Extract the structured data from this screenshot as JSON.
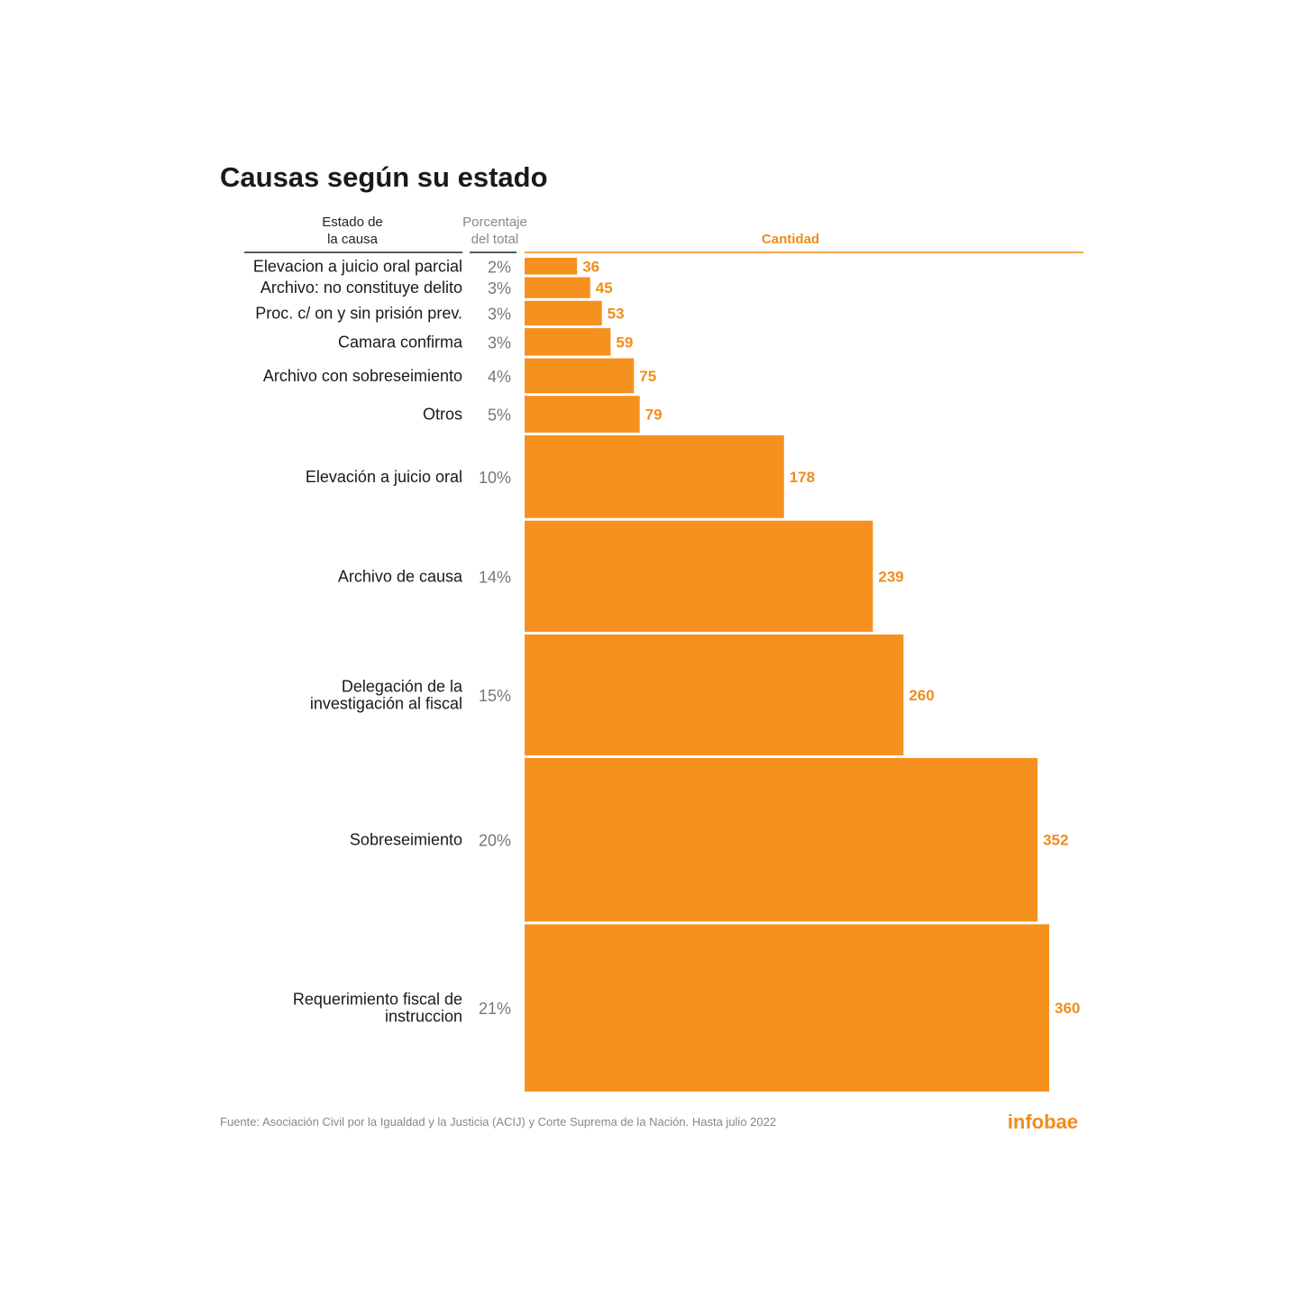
{
  "chart_data": {
    "type": "bar",
    "orientation": "horizontal",
    "title": "Causas según su estado",
    "column_headers": {
      "category": [
        "Estado de",
        "la causa"
      ],
      "percentage": [
        "Porcentaje",
        "del total"
      ],
      "value": "Cantidad"
    },
    "categories": [
      [
        "Elevacion a juicio oral parcial"
      ],
      [
        "Archivo: no constituye delito"
      ],
      [
        "Proc. c/ on y sin prisión prev."
      ],
      [
        "Camara confirma"
      ],
      [
        "Archivo con sobreseimiento"
      ],
      [
        "Otros"
      ],
      [
        "Elevación a juicio oral"
      ],
      [
        "Archivo de causa"
      ],
      [
        "Delegación de la",
        "investigación al fiscal"
      ],
      [
        "Sobreseimiento"
      ],
      [
        "Requerimiento fiscal de",
        "instruccion"
      ]
    ],
    "percentages": [
      "2%",
      "3%",
      "3%",
      "3%",
      "4%",
      "5%",
      "10%",
      "14%",
      "15%",
      "20%",
      "21%"
    ],
    "values": [
      36,
      45,
      53,
      59,
      75,
      79,
      178,
      239,
      260,
      352,
      360
    ],
    "bar_color": "#f6901e",
    "label_color": "#f08c1c",
    "bar_thickness_proportional_to_value": true
  },
  "footer": {
    "source": "Fuente: Asociación Civil por la Igualdad y la Justicia (ACIJ) y Corte Suprema de la Nación. Hasta julio 2022",
    "logo": "infobae"
  }
}
